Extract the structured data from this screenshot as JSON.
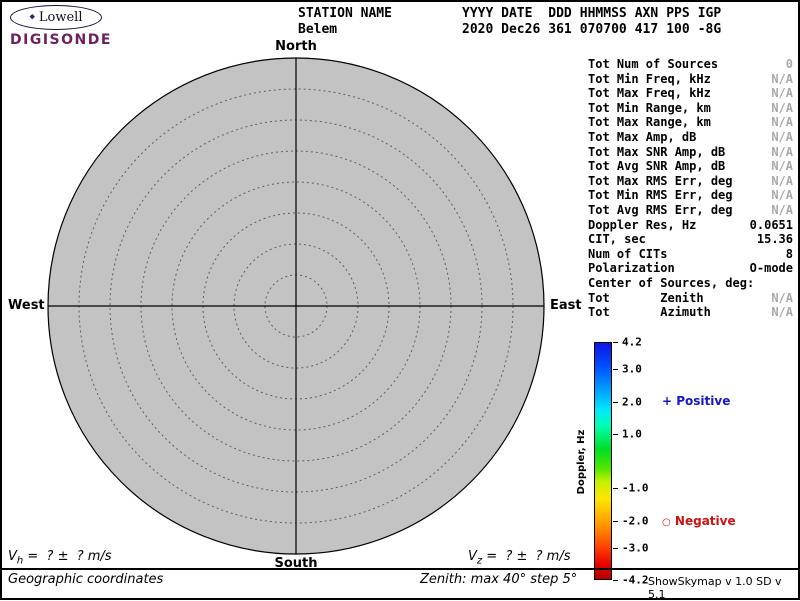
{
  "colors": {
    "plot_fill": "#c3c3c3",
    "brand_purple": "#6e2160",
    "positive_blue": "#1515cc",
    "negative_red": "#cc1111",
    "na_gray": "#a9a9a9"
  },
  "logo": {
    "brand": "Lowell",
    "product": "DIGISONDE",
    "diamond": "◆"
  },
  "header": {
    "fields": [
      {
        "label": "STATION NAME",
        "value": "Belem"
      },
      {
        "label": "YYYY DATE",
        "value": "2020 Dec26"
      },
      {
        "label": "DDD",
        "value": "361"
      },
      {
        "label": "HHMMSS",
        "value": "070700"
      },
      {
        "label": "AXN",
        "value": "417"
      },
      {
        "label": "PPS",
        "value": "100"
      },
      {
        "label": "IGP",
        "value": "-8G"
      }
    ]
  },
  "stats": {
    "rows": [
      {
        "label": "Tot Num of Sources",
        "value": "0",
        "dim": true
      },
      {
        "label": "Tot Min Freq, kHz",
        "value": "N/A",
        "dim": true
      },
      {
        "label": "Tot Max Freq, kHz",
        "value": "N/A",
        "dim": true
      },
      {
        "label": "Tot Min Range, km",
        "value": "N/A",
        "dim": true
      },
      {
        "label": "Tot Max Range, km",
        "value": "N/A",
        "dim": true
      },
      {
        "label": "Tot Max Amp, dB",
        "value": "N/A",
        "dim": true
      },
      {
        "label": "Tot Max SNR Amp, dB",
        "value": "N/A",
        "dim": true
      },
      {
        "label": "Tot Avg SNR Amp, dB",
        "value": "N/A",
        "dim": true
      },
      {
        "label": "Tot Max RMS Err, deg",
        "value": "N/A",
        "dim": true
      },
      {
        "label": "Tot Min RMS Err, deg",
        "value": "N/A",
        "dim": true
      },
      {
        "label": "Tot Avg RMS Err, deg",
        "value": "N/A",
        "dim": true
      },
      {
        "label": "Doppler Res, Hz",
        "value": "0.0651",
        "dim": false
      },
      {
        "label": "CIT, sec",
        "value": "15.36",
        "dim": false
      },
      {
        "label": "Num of CITs",
        "value": "8",
        "dim": false
      },
      {
        "label": "Polarization",
        "value": "O-mode",
        "dim": false
      },
      {
        "label": "Center of Sources, deg:",
        "value": "",
        "dim": false
      },
      {
        "label": "Tot       Zenith",
        "value": "N/A",
        "dim": true
      },
      {
        "label": "Tot       Azimuth",
        "value": "N/A",
        "dim": true
      }
    ]
  },
  "footer": {
    "vh": {
      "symbol": "V",
      "sub": "h",
      "rest": " =  ? ±  ? m/s"
    },
    "vz": {
      "symbol": "V",
      "sub": "z",
      "rest": " =  ? ±  ? m/s"
    },
    "coordinates_note": "Geographic coordinates",
    "zenith_note": "Zenith: max 40°  step 5°",
    "version": "ShowSkymap v 1.0  SD v 5.1"
  },
  "chart_data": {
    "type": "scatter",
    "subtype": "polar-skymap",
    "title": "",
    "points": [],
    "num_sources": 0,
    "zenith_max_deg": 40,
    "zenith_step_deg": 5,
    "zenith_rings_deg": [
      5,
      10,
      15,
      20,
      25,
      30,
      35,
      40
    ],
    "compass": {
      "north": "North",
      "south": "South",
      "east": "East",
      "west": "West"
    },
    "colorbar": {
      "label": "Doppler, Hz",
      "range": [
        -4.2,
        4.2
      ],
      "ticks": [
        {
          "label": "4.2",
          "pct": 0
        },
        {
          "label": "3.0",
          "pct": 11.5
        },
        {
          "label": "2.0",
          "pct": 25
        },
        {
          "label": "1.0",
          "pct": 38.5
        },
        {
          "label": "-1.0",
          "pct": 61.5
        },
        {
          "label": "-2.0",
          "pct": 75
        },
        {
          "label": "-3.0",
          "pct": 86.5
        },
        {
          "label": "-4.2",
          "pct": 100
        }
      ],
      "gradient_stops": [
        "#1414e6 0%",
        "#0050ff 10%",
        "#00a0ff 20%",
        "#00e6ff 28%",
        "#00ffb4 35%",
        "#00dc28 45%",
        "#50e600 53%",
        "#c8f000 59%",
        "#ffe600 66%",
        "#ffa000 76%",
        "#ff4600 86%",
        "#e60000 94%",
        "#b40000 100%"
      ],
      "positive": {
        "marker": "+",
        "label": "Positive"
      },
      "negative": {
        "marker": "○",
        "label": "Negative"
      }
    }
  }
}
